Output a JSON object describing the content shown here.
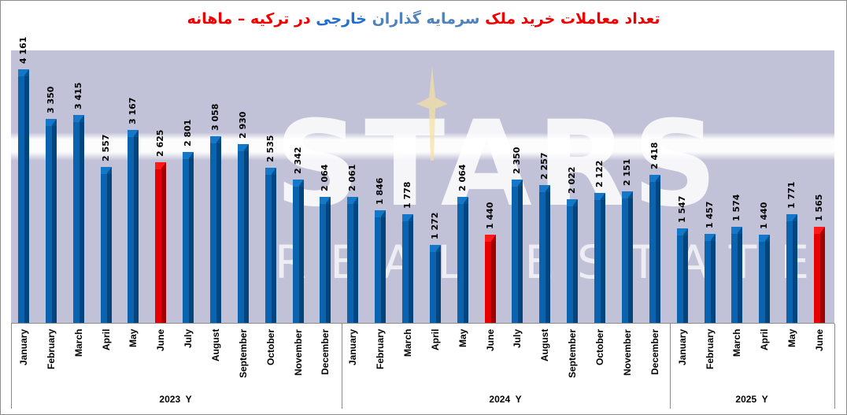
{
  "title": {
    "part1": "تعداد معاملات خرید ملک",
    "part2": "سرمایه گذاران",
    "part3": "خارجی",
    "part4": "در ترکیه – ماهانه",
    "colors": {
      "red": "#f00000",
      "blue_light": "#4f81bd",
      "blue_dark": "#1f6fd1"
    }
  },
  "watermark": {
    "line1": "STARS",
    "line2": "REAL ESTATE"
  },
  "colors": {
    "bar": "#0a63ae",
    "bar_highlight": "#e60000",
    "plot_bg": "#c1c1d7"
  },
  "chart_data": {
    "type": "bar",
    "title": "تعداد معاملات خرید ملک سرمایه گذاران خارجی در ترکیه – ماهانه",
    "xlabel": "",
    "ylabel": "",
    "ylim": [
      0,
      4300
    ],
    "grid": false,
    "legend": null,
    "groups": [
      {
        "label": "2023  Y",
        "start": 0,
        "count": 12
      },
      {
        "label": "2024  Y",
        "start": 12,
        "count": 12
      },
      {
        "label": "2025  Y",
        "start": 24,
        "count": 6
      }
    ],
    "categories": [
      "January",
      "February",
      "March",
      "April",
      "May",
      "June",
      "July",
      "August",
      "September",
      "October",
      "November",
      "December",
      "January",
      "February",
      "March",
      "April",
      "May",
      "June",
      "July",
      "August",
      "September",
      "October",
      "November",
      "December",
      "January",
      "February",
      "March",
      "April",
      "May",
      "June"
    ],
    "values": [
      4161,
      3350,
      3415,
      2557,
      3167,
      2625,
      2801,
      3058,
      2930,
      2535,
      2342,
      2064,
      2061,
      1846,
      1778,
      1272,
      2064,
      1440,
      2350,
      2257,
      2022,
      2122,
      2151,
      2418,
      1547,
      1457,
      1574,
      1440,
      1771,
      1565
    ],
    "value_labels": [
      "4 161",
      "3 350",
      "3 415",
      "2 557",
      "3 167",
      "2 625",
      "2 801",
      "3 058",
      "2 930",
      "2 535",
      "2 342",
      "2 064",
      "2 061",
      "1 846",
      "1 778",
      "1 272",
      "2 064",
      "1 440",
      "2 350",
      "2 257",
      "2 022",
      "2 122",
      "2 151",
      "2 418",
      "1 547",
      "1 457",
      "1 574",
      "1 440",
      "1 771",
      "1 565"
    ],
    "highlighted_indices": [
      5,
      17,
      29
    ]
  }
}
